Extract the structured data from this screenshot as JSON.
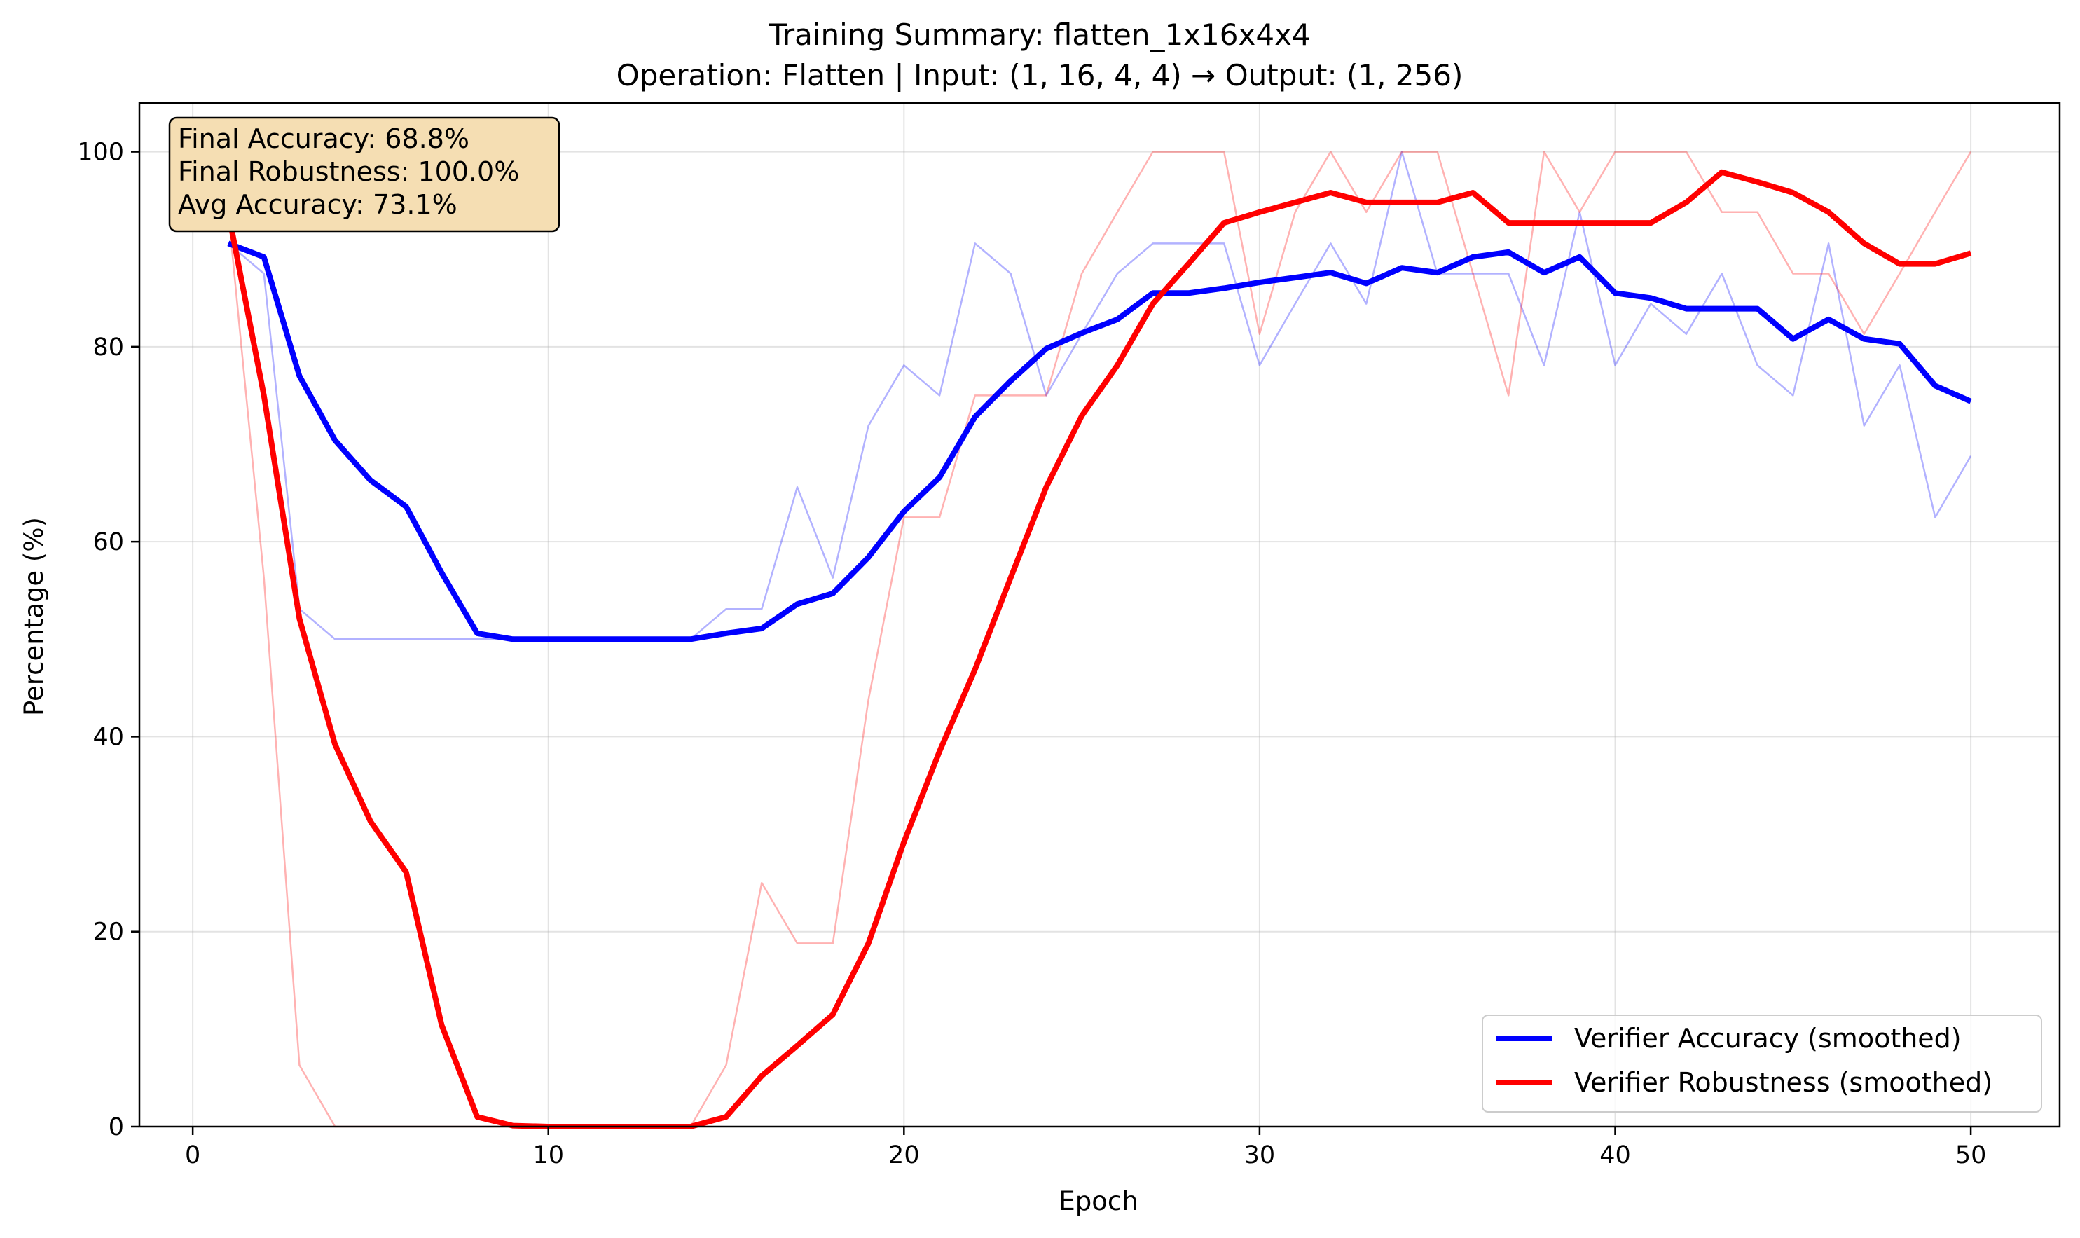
{
  "chart_data": {
    "type": "line",
    "title": "Training Summary: flatten_1x16x4x4",
    "subtitle": "Operation: Flatten | Input: (1, 16, 4, 4) → Output: (1, 256)",
    "xlabel": "Epoch",
    "ylabel": "Percentage (%)",
    "xlim": [
      -1.5,
      52.5
    ],
    "ylim": [
      0,
      105
    ],
    "xticks": [
      0,
      10,
      20,
      30,
      40,
      50
    ],
    "yticks": [
      0,
      20,
      40,
      60,
      80,
      100
    ],
    "grid": true,
    "legend_position": "lower-right",
    "x": [
      1,
      2,
      3,
      4,
      5,
      6,
      7,
      8,
      9,
      10,
      11,
      12,
      13,
      14,
      15,
      16,
      17,
      18,
      19,
      20,
      21,
      22,
      23,
      24,
      25,
      26,
      27,
      28,
      29,
      30,
      31,
      32,
      33,
      34,
      35,
      36,
      37,
      38,
      39,
      40,
      41,
      42,
      43,
      44,
      45,
      46,
      47,
      48,
      49,
      50
    ],
    "series": [
      {
        "name": "Verifier Accuracy (smoothed)",
        "color": "#0000ff",
        "width": "thick",
        "values": [
          90.6,
          89.2,
          77.0,
          70.4,
          66.3,
          63.6,
          56.8,
          50.6,
          50.0,
          50.0,
          50.0,
          50.0,
          50.0,
          50.0,
          50.6,
          51.1,
          53.6,
          54.7,
          58.4,
          63.1,
          66.6,
          72.8,
          76.5,
          79.8,
          81.4,
          82.8,
          85.5,
          85.5,
          86.0,
          86.6,
          87.1,
          87.6,
          86.5,
          88.1,
          87.6,
          89.2,
          89.7,
          87.6,
          89.2,
          85.5,
          85.0,
          83.9,
          83.9,
          83.9,
          80.8,
          82.8,
          80.8,
          80.3,
          76.0,
          74.4
        ]
      },
      {
        "name": "Verifier Robustness (smoothed)",
        "color": "#ff0000",
        "width": "thick",
        "values": [
          93.8,
          75.0,
          52.1,
          39.2,
          31.3,
          26.1,
          10.4,
          1.0,
          0.1,
          0.0,
          0.0,
          0.0,
          0.0,
          0.0,
          1.0,
          5.2,
          8.3,
          11.5,
          18.8,
          29.2,
          38.5,
          46.9,
          56.3,
          65.6,
          72.9,
          78.1,
          84.4,
          88.5,
          92.7,
          93.8,
          94.8,
          95.8,
          94.8,
          94.8,
          94.8,
          95.8,
          92.7,
          92.7,
          92.7,
          92.7,
          92.7,
          94.8,
          97.9,
          96.9,
          95.8,
          93.8,
          90.6,
          88.5,
          88.5,
          89.6
        ]
      },
      {
        "name": "",
        "color": "#0000ff",
        "width": "thin-faded",
        "values": [
          90.6,
          87.5,
          53.1,
          50.0,
          50.0,
          50.0,
          50.0,
          50.0,
          50.0,
          50.0,
          50.0,
          50.0,
          50.0,
          50.0,
          53.1,
          53.1,
          65.6,
          56.3,
          71.9,
          78.1,
          75.0,
          90.6,
          87.5,
          75.0,
          81.3,
          87.5,
          90.6,
          90.6,
          90.6,
          78.1,
          84.4,
          90.6,
          84.4,
          100.0,
          87.5,
          87.5,
          87.5,
          78.1,
          93.8,
          78.1,
          84.4,
          81.3,
          87.5,
          78.1,
          75.0,
          90.6,
          71.9,
          78.1,
          62.5,
          68.8
        ]
      },
      {
        "name": "",
        "color": "#ff0000",
        "width": "thin-faded",
        "values": [
          93.8,
          56.3,
          6.3,
          0.0,
          0.0,
          0.0,
          0.0,
          0.0,
          0.0,
          0.0,
          0.0,
          0.0,
          0.0,
          0.0,
          6.3,
          25.0,
          18.8,
          18.8,
          43.8,
          62.5,
          62.5,
          75.0,
          75.0,
          75.0,
          87.5,
          93.8,
          100.0,
          100.0,
          100.0,
          81.3,
          93.8,
          100.0,
          93.8,
          100.0,
          100.0,
          87.5,
          75.0,
          100.0,
          93.8,
          100.0,
          100.0,
          100.0,
          93.8,
          93.8,
          87.5,
          87.5,
          81.3,
          87.5,
          93.8,
          100.0
        ]
      }
    ],
    "annotation_lines": [
      "Final Accuracy: 68.8%",
      "Final Robustness: 100.0%",
      "Avg Accuracy: 73.1%"
    ]
  }
}
